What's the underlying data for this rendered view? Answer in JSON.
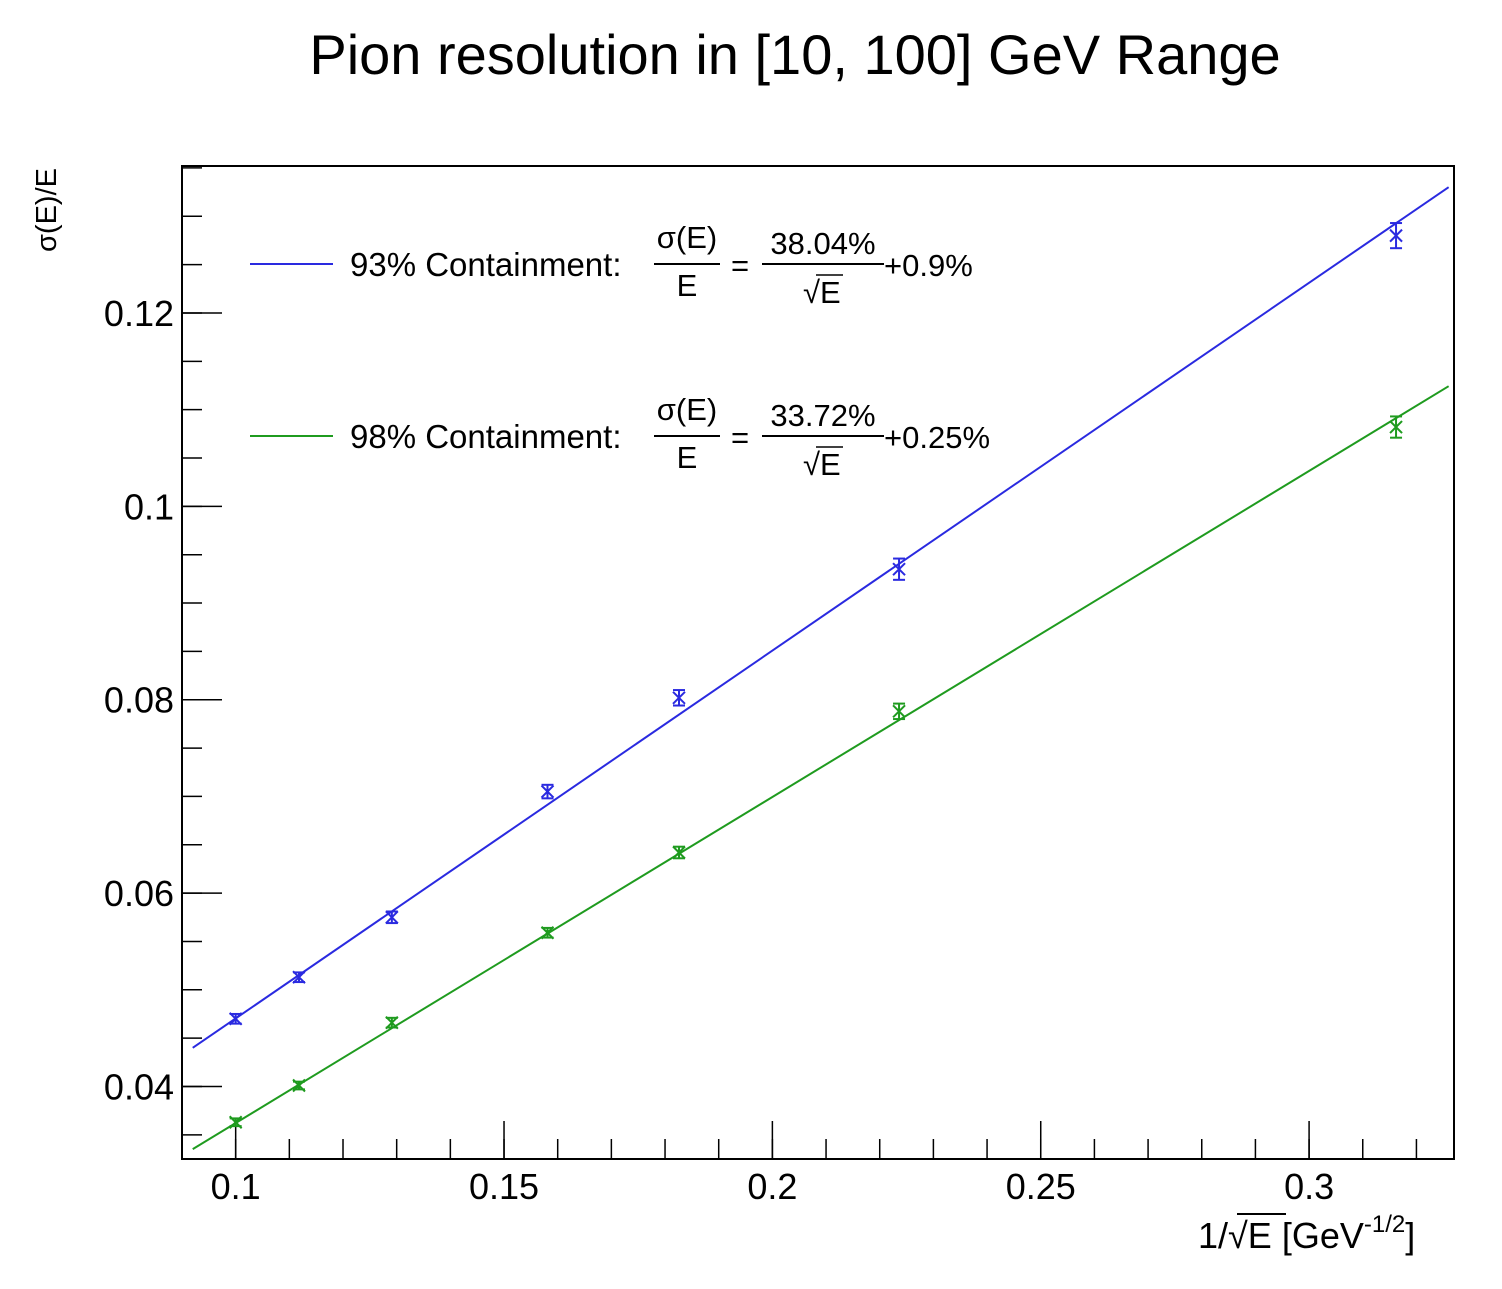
{
  "chart_data": {
    "type": "scatter",
    "title": "Pion resolution in [10, 100] GeV Range",
    "ylabel": "σ(E)/E",
    "xlabel": {
      "prefix": "1/",
      "radicand": "E",
      "unit_open": " [GeV",
      "unit_exponent": "-1/2",
      "unit_close": "]"
    },
    "xlim": [
      0.09,
      0.327
    ],
    "ylim": [
      0.0325,
      0.1352
    ],
    "x_ticks": [
      0.1,
      0.15,
      0.2,
      0.25,
      0.3
    ],
    "x_tick_labels": [
      "0.1",
      "0.15",
      "0.2",
      "0.25",
      "0.3"
    ],
    "y_ticks": [
      0.04,
      0.06,
      0.08,
      0.1,
      0.12
    ],
    "y_tick_labels": [
      "0.04",
      "0.06",
      "0.08",
      "0.1",
      "0.12"
    ],
    "x_minor_step": 0.01,
    "y_minor_step": 0.005,
    "series": [
      {
        "name": "93% Containment",
        "color": "#2a2ae0",
        "x": [
          0.1,
          0.1118,
          0.1291,
          0.1581,
          0.1826,
          0.2236,
          0.3162
        ],
        "y": [
          0.047,
          0.0513,
          0.0575,
          0.0705,
          0.0802,
          0.0935,
          0.128
        ],
        "y_err": [
          0.0005,
          0.0005,
          0.0006,
          0.0007,
          0.0008,
          0.0011,
          0.0013
        ],
        "fit": {
          "stochastic": 0.3804,
          "constant": 0.009
        },
        "legend": {
          "label": "93% Containment:",
          "numerator": "σ(E)",
          "denominator": "E",
          "equals": "=",
          "coefficient": "38.04%",
          "sqrt_radicand": "E",
          "constant": "+0.9%"
        }
      },
      {
        "name": "98% Containment",
        "color": "#1f9b1f",
        "x": [
          0.1,
          0.1118,
          0.1291,
          0.1581,
          0.1826,
          0.2236,
          0.3162
        ],
        "y": [
          0.0363,
          0.0401,
          0.0466,
          0.0559,
          0.0642,
          0.0788,
          0.1082
        ],
        "y_err": [
          0.0004,
          0.0004,
          0.0005,
          0.0005,
          0.0006,
          0.0008,
          0.0011
        ],
        "fit": {
          "stochastic": 0.3372,
          "constant": 0.0025
        },
        "legend": {
          "label": "98% Containment:",
          "numerator": "σ(E)",
          "denominator": "E",
          "equals": "=",
          "coefficient": "33.72%",
          "sqrt_radicand": "E",
          "constant": "+0.25%"
        }
      }
    ]
  }
}
